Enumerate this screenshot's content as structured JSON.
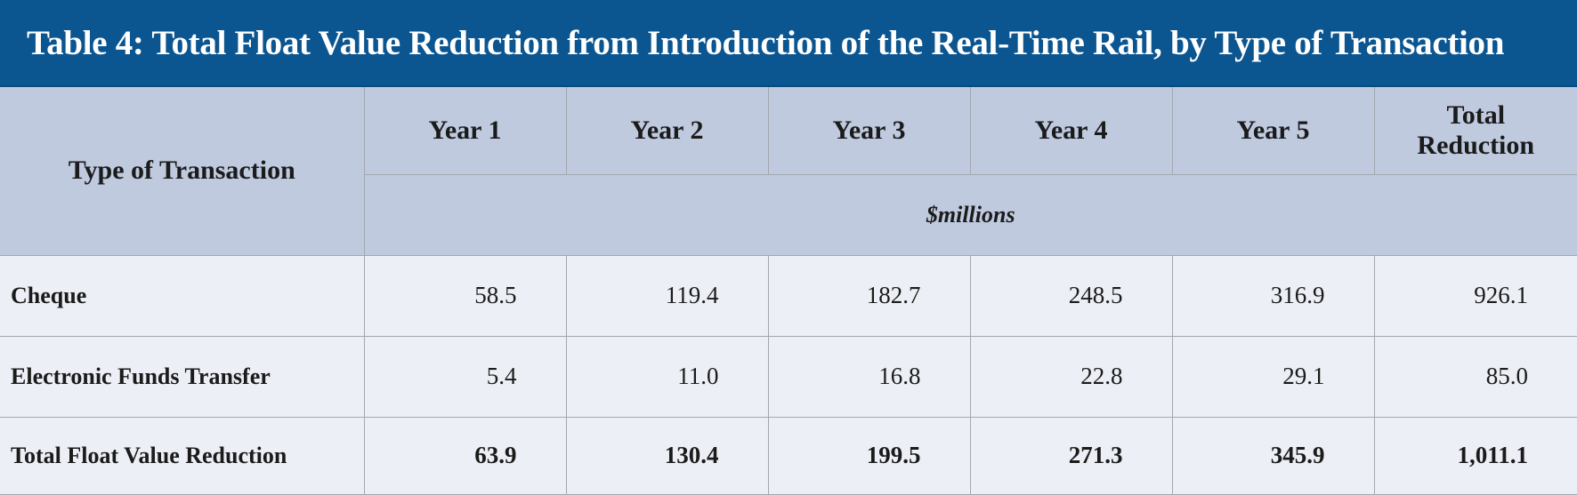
{
  "title": "Table 4: Total Float Value Reduction from Introduction of the Real-Time Rail, by Type of Transaction",
  "header": {
    "type_col": "Type of Transaction",
    "years": [
      "Year 1",
      "Year 2",
      "Year 3",
      "Year 4",
      "Year 5"
    ],
    "total_col": [
      "Total",
      "Reduction"
    ],
    "unit": "$millions"
  },
  "rows": [
    {
      "label": "Cheque",
      "values": [
        "58.5",
        "119.4",
        "182.7",
        "248.5",
        "316.9",
        "926.1"
      ]
    },
    {
      "label": "Electronic Funds Transfer",
      "values": [
        "5.4",
        "11.0",
        "16.8",
        "22.8",
        "29.1",
        "85.0"
      ]
    },
    {
      "label": "Total Float Value Reduction",
      "values": [
        "63.9",
        "130.4",
        "199.5",
        "271.3",
        "345.9",
        "1,011.1"
      ]
    }
  ],
  "colors": {
    "title_bg": "#0b5590",
    "header_bg": "#bfcadf",
    "body_bg": "#eceff5",
    "border": "#a3a7ae"
  }
}
